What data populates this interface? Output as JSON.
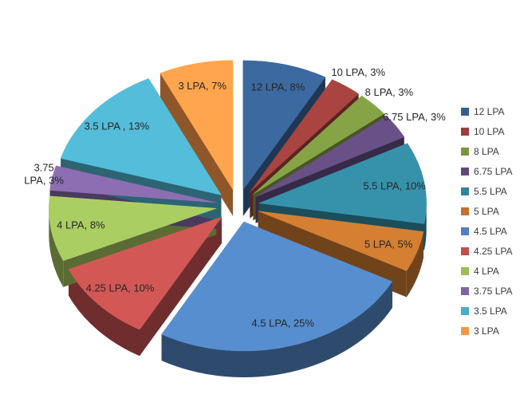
{
  "chart": {
    "background": "#ffffff",
    "label_color": "#262626",
    "leader_line_color": "#595959"
  },
  "chart_data": {
    "type": "pie",
    "style": "3d-exploded",
    "title": "",
    "legend_position": "right",
    "slices": [
      {
        "name": "12 LPA",
        "value": 8,
        "label": "12 LPA, 8%",
        "color": "#365F91"
      },
      {
        "name": "10 LPA",
        "value": 3,
        "label": "10 LPA, 3%",
        "color": "#9A3E3B"
      },
      {
        "name": "8 LPA",
        "value": 3,
        "label": "8 LPA, 3%",
        "color": "#7A9440"
      },
      {
        "name": "6.75 LPA",
        "value": 3,
        "label": "6.75 LPA, 3%",
        "color": "#5F497A"
      },
      {
        "name": "5.5 LPA",
        "value": 10,
        "label": "5.5 LPA, 10%",
        "color": "#31849B"
      },
      {
        "name": "5 LPA",
        "value": 5,
        "label": "5 LPA, 5%",
        "color": "#C2732E"
      },
      {
        "name": "4.5 LPA",
        "value": 25,
        "label": "4.5 LPA, 25%",
        "color": "#4F81BD"
      },
      {
        "name": "4.25 LPA",
        "value": 10,
        "label": "4.25 LPA, 10%",
        "color": "#C0504D"
      },
      {
        "name": "4 LPA",
        "value": 8,
        "label": "4 LPA, 8%",
        "color": "#9BBB59"
      },
      {
        "name": "3.75 LPA",
        "value": 3,
        "label": "3.75 LPA, 3%",
        "color": "#8064A2"
      },
      {
        "name": "3.5 LPA",
        "value": 13,
        "label": "3.5 LPA , 13%",
        "color": "#4BACC6"
      },
      {
        "name": "3 LPA",
        "value": 7,
        "label": "3 LPA, 7%",
        "color": "#F79646"
      }
    ]
  }
}
